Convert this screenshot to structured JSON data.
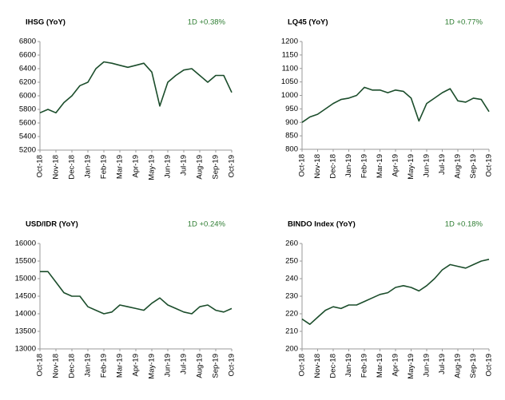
{
  "chart_data": [
    {
      "type": "line",
      "title": "IHSG (YoY)",
      "annotation": "1D +0.38%",
      "categories": [
        "Oct-18",
        null,
        "Nov-18",
        null,
        "Dec-18",
        null,
        "Jan-19",
        null,
        "Feb-19",
        null,
        "Mar-19",
        null,
        "Apr-19",
        null,
        "May-19",
        null,
        "Jun-19",
        null,
        "Jul-19",
        null,
        "Aug-19",
        null,
        "Sep-19",
        null,
        "Oct-19"
      ],
      "series": [
        {
          "color": "#1b4d2b",
          "values": [
            5750,
            5800,
            5750,
            5900,
            6000,
            6150,
            6200,
            6400,
            6500,
            6480,
            6450,
            6420,
            6450,
            6480,
            6350,
            5850,
            6200,
            6300,
            6380,
            6400,
            6300,
            6200,
            6300,
            6300,
            6050
          ]
        }
      ],
      "ylim": [
        5200,
        6800
      ],
      "yticks": [
        5200,
        5400,
        5600,
        5800,
        6000,
        6200,
        6400,
        6600,
        6800
      ]
    },
    {
      "type": "line",
      "title": "LQ45 (YoY)",
      "annotation": "1D +0.77%",
      "categories": [
        "Oct-18",
        null,
        "Nov-18",
        null,
        "Dec-18",
        null,
        "Jan-19",
        null,
        "Feb-19",
        null,
        "Mar-19",
        null,
        "Apr-19",
        null,
        "May-19",
        null,
        "Jun-19",
        null,
        "Jul-19",
        null,
        "Aug-19",
        null,
        "Sep-19",
        null,
        "Oct-19"
      ],
      "series": [
        {
          "color": "#1b4d2b",
          "values": [
            900,
            920,
            930,
            950,
            970,
            985,
            990,
            1000,
            1030,
            1020,
            1020,
            1010,
            1020,
            1015,
            990,
            905,
            970,
            990,
            1010,
            1025,
            980,
            975,
            990,
            985,
            940
          ]
        }
      ],
      "ylim": [
        800,
        1200
      ],
      "yticks": [
        800,
        850,
        900,
        950,
        1000,
        1050,
        1100,
        1150,
        1200
      ]
    },
    {
      "type": "line",
      "title": "USD/IDR  (YoY)",
      "annotation": "1D +0.24%",
      "categories": [
        "Oct-18",
        null,
        "Nov-18",
        null,
        "Dec-18",
        null,
        "Jan-19",
        null,
        "Feb-19",
        null,
        "Mar-19",
        null,
        "Apr-19",
        null,
        "May-19",
        null,
        "Jun-19",
        null,
        "Jul-19",
        null,
        "Aug-19",
        null,
        "Sep-19",
        null,
        "Oct-19"
      ],
      "series": [
        {
          "color": "#1b4d2b",
          "values": [
            15200,
            15200,
            14900,
            14600,
            14500,
            14500,
            14200,
            14100,
            14000,
            14050,
            14250,
            14200,
            14150,
            14100,
            14300,
            14450,
            14250,
            14150,
            14050,
            14000,
            14200,
            14250,
            14100,
            14050,
            14150
          ]
        }
      ],
      "ylim": [
        13000,
        16000
      ],
      "yticks": [
        13000,
        13500,
        14000,
        14500,
        15000,
        15500,
        16000
      ]
    },
    {
      "type": "line",
      "title": "BINDO Index (YoY)",
      "annotation": "1D +0.18%",
      "categories": [
        "Oct-18",
        null,
        "Nov-18",
        null,
        "Dec-18",
        null,
        "Jan-19",
        null,
        "Feb-19",
        null,
        "Mar-19",
        null,
        "Apr-19",
        null,
        "May-19",
        null,
        "Jun-19",
        null,
        "Jul-19",
        null,
        "Aug-19",
        null,
        "Sep-19",
        null,
        "Oct-19"
      ],
      "series": [
        {
          "color": "#1b4d2b",
          "values": [
            217,
            214,
            218,
            222,
            224,
            223,
            225,
            225,
            227,
            229,
            231,
            232,
            235,
            236,
            235,
            233,
            236,
            240,
            245,
            248,
            247,
            246,
            248,
            250,
            251
          ]
        }
      ],
      "ylim": [
        200,
        260
      ],
      "yticks": [
        200,
        210,
        220,
        230,
        240,
        250,
        260
      ]
    }
  ]
}
